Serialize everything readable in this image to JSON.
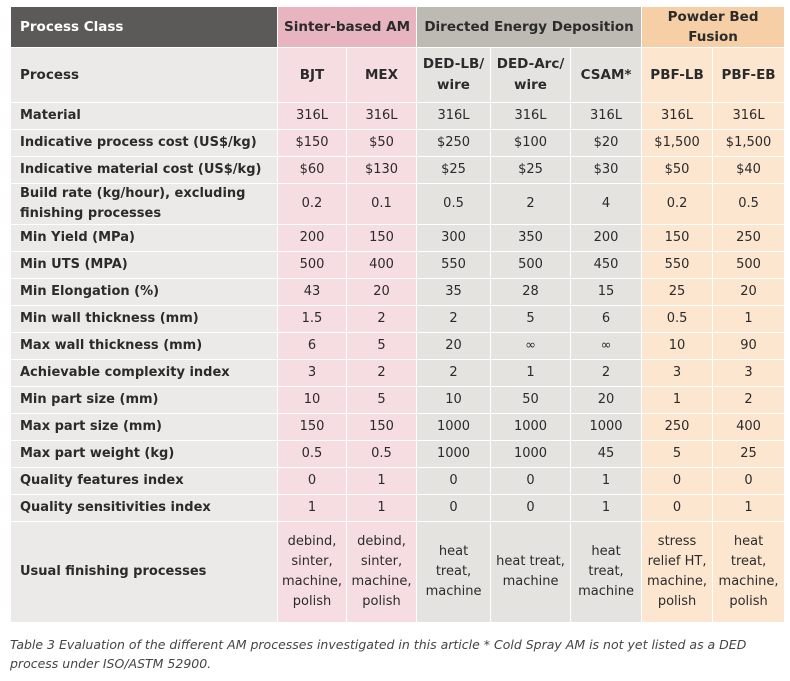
{
  "header": {
    "process_class": "Process Class",
    "groups": [
      "Sinter-based AM",
      "Directed Energy Deposition",
      "Powder Bed Fusion"
    ]
  },
  "processes_label": "Process",
  "processes": [
    "BJT",
    "MEX",
    "DED-LB/ wire",
    "DED-Arc/ wire",
    "CSAM*",
    "PBF-LB",
    "PBF-EB"
  ],
  "rows": [
    {
      "label": "Material",
      "values": [
        "316L",
        "316L",
        "316L",
        "316L",
        "316L",
        "316L",
        "316L"
      ]
    },
    {
      "label": "Indicative process cost (US$/kg)",
      "values": [
        "$150",
        "$50",
        "$250",
        "$100",
        "$20",
        "$1,500",
        "$1,500"
      ]
    },
    {
      "label": "Indicative material cost (US$/kg)",
      "values": [
        "$60",
        "$130",
        "$25",
        "$25",
        "$30",
        "$50",
        "$40"
      ]
    },
    {
      "label": "Build rate (kg/hour), excluding finishing processes",
      "values": [
        "0.2",
        "0.1",
        "0.5",
        "2",
        "4",
        "0.2",
        "0.5"
      ]
    },
    {
      "label": "Min Yield (MPa)",
      "values": [
        "200",
        "150",
        "300",
        "350",
        "200",
        "150",
        "250"
      ]
    },
    {
      "label": "Min UTS (MPA)",
      "values": [
        "500",
        "400",
        "550",
        "500",
        "450",
        "550",
        "500"
      ]
    },
    {
      "label": "Min Elongation (%)",
      "values": [
        "43",
        "20",
        "35",
        "28",
        "15",
        "25",
        "20"
      ]
    },
    {
      "label": "Min wall thickness (mm)",
      "values": [
        "1.5",
        "2",
        "2",
        "5",
        "6",
        "0.5",
        "1"
      ]
    },
    {
      "label": "Max wall thickness (mm)",
      "values": [
        "6",
        "5",
        "20",
        "∞",
        "∞",
        "10",
        "90"
      ]
    },
    {
      "label": "Achievable complexity index",
      "values": [
        "3",
        "2",
        "2",
        "1",
        "2",
        "3",
        "3"
      ]
    },
    {
      "label": "Min part size (mm)",
      "values": [
        "10",
        "5",
        "10",
        "50",
        "20",
        "1",
        "2"
      ]
    },
    {
      "label": "Max part size (mm)",
      "values": [
        "150",
        "150",
        "1000",
        "1000",
        "1000",
        "250",
        "400"
      ]
    },
    {
      "label": "Max part weight (kg)",
      "values": [
        "0.5",
        "0.5",
        "1000",
        "1000",
        "45",
        "5",
        "25"
      ]
    },
    {
      "label": "Quality features index",
      "values": [
        "0",
        "1",
        "0",
        "0",
        "1",
        "0",
        "0"
      ]
    },
    {
      "label": "Quality sensitivities index",
      "values": [
        "1",
        "1",
        "0",
        "0",
        "1",
        "0",
        "1"
      ]
    },
    {
      "label": "Usual finishing processes",
      "values": [
        "debind, sinter, machine, polish",
        "debind, sinter, machine, polish",
        "heat treat, machine",
        "heat treat, machine",
        "heat treat, machine",
        "stress relief HT, machine, polish",
        "heat treat, machine, polish"
      ]
    }
  ],
  "caption": "Table 3 Evaluation of the different AM processes investigated in this article * Cold Spray AM is not yet listed as a DED process under ISO/ASTM 52900.",
  "colors": {
    "process_class_bg": "#5c5a59",
    "sinter_header": "#e7b4bf",
    "ded_header": "#bdbab4",
    "pbf_header": "#f6cfa7",
    "sinter_cell": "#f6dde2",
    "ded_cell": "#e4e3e0",
    "pbf_cell": "#fde6d0",
    "label_cell": "#ebeae8"
  }
}
